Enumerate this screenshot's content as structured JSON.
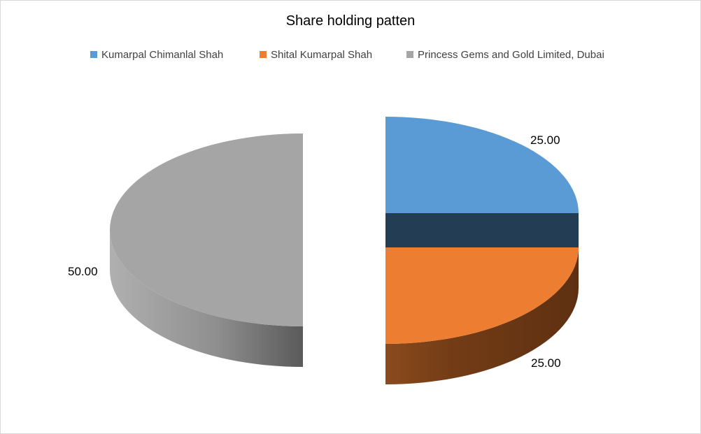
{
  "chart_data": {
    "type": "pie",
    "title": "Share holding patten",
    "legend_position": "top",
    "three_d": true,
    "exploded": true,
    "categories": [
      "Kumarpal Chimanlal Shah",
      "Shital Kumarpal Shah",
      "Princess Gems and Gold Limited, Dubai"
    ],
    "values": [
      25.0,
      25.0,
      50.0
    ],
    "data_labels": [
      "25.00",
      "25.00",
      "50.00"
    ],
    "colors": [
      "#5b9bd5",
      "#ed7d31",
      "#a5a5a5"
    ]
  }
}
